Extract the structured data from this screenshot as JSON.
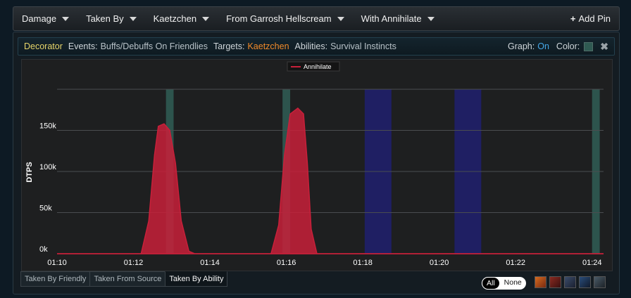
{
  "toolbar": {
    "items": [
      {
        "label": "Damage",
        "name": "damage-dropdown"
      },
      {
        "label": "Taken By",
        "name": "taken-by-dropdown"
      },
      {
        "label": "Kaetzchen",
        "name": "kaetzchen-dropdown"
      },
      {
        "label": "From Garrosh Hellscream",
        "name": "source-dropdown"
      },
      {
        "label": "With Annihilate",
        "name": "ability-dropdown"
      }
    ],
    "add_pin_label": "Add Pin",
    "add_pin_plus": "+"
  },
  "decorator": {
    "title": "Decorator",
    "events_label": "Events:",
    "events_value": "Buffs/Debuffs On Friendlies",
    "targets_label": "Targets:",
    "targets_value": "Kaetzchen",
    "abilities_label": "Abilities:",
    "abilities_value": "Survival Instincts",
    "graph_label": "Graph:",
    "graph_value": "On",
    "color_label": "Color:",
    "close_glyph": "✖"
  },
  "chart_data": {
    "type": "area",
    "title": "",
    "ylabel": "DTPS",
    "xlabel": "",
    "xlim_seconds": [
      70,
      84.3
    ],
    "ylim": [
      0,
      200000
    ],
    "x_ticks": [
      {
        "t": 70,
        "label": "01:10"
      },
      {
        "t": 72,
        "label": "01:12"
      },
      {
        "t": 74,
        "label": "01:14"
      },
      {
        "t": 76,
        "label": "01:16"
      },
      {
        "t": 78,
        "label": "01:18"
      },
      {
        "t": 80,
        "label": "01:20"
      },
      {
        "t": 82,
        "label": "01:22"
      },
      {
        "t": 84,
        "label": "01:24"
      }
    ],
    "y_ticks": [
      {
        "v": 0,
        "label": "0k"
      },
      {
        "v": 50000,
        "label": "50k"
      },
      {
        "v": 100000,
        "label": "100k"
      },
      {
        "v": 150000,
        "label": "150k"
      }
    ],
    "grid": true,
    "legend_position": "top-center",
    "series": [
      {
        "name": "Annihilate",
        "color": "#c8203a",
        "points": [
          [
            70,
            0
          ],
          [
            72.2,
            0
          ],
          [
            72.4,
            40000
          ],
          [
            72.55,
            120000
          ],
          [
            72.65,
            155000
          ],
          [
            72.8,
            158000
          ],
          [
            72.95,
            150000
          ],
          [
            73.1,
            110000
          ],
          [
            73.25,
            40000
          ],
          [
            73.45,
            3000
          ],
          [
            73.6,
            0
          ],
          [
            75.6,
            0
          ],
          [
            75.8,
            35000
          ],
          [
            75.95,
            120000
          ],
          [
            76.1,
            170000
          ],
          [
            76.3,
            177000
          ],
          [
            76.45,
            170000
          ],
          [
            76.55,
            110000
          ],
          [
            76.65,
            30000
          ],
          [
            76.8,
            0
          ],
          [
            84.3,
            0
          ]
        ]
      }
    ],
    "bands": [
      {
        "start": 72.85,
        "end": 73.05,
        "color": "#2f5a52"
      },
      {
        "start": 75.9,
        "end": 76.1,
        "color": "#2f5a52"
      },
      {
        "start": 78.05,
        "end": 78.75,
        "color": "#1f1f6a"
      },
      {
        "start": 80.4,
        "end": 81.1,
        "color": "#1f1f6a"
      },
      {
        "start": 84.0,
        "end": 84.2,
        "color": "#2f5a52"
      }
    ]
  },
  "tabs": [
    {
      "label": "Taken By Friendly",
      "active": false
    },
    {
      "label": "Taken From Source",
      "active": false
    },
    {
      "label": "Taken By Ability",
      "active": true
    }
  ],
  "filter": {
    "all_label": "All",
    "none_label": "None"
  },
  "unit_icons": [
    "unit-icon-1",
    "unit-icon-2",
    "unit-icon-3",
    "unit-icon-4",
    "unit-icon-5"
  ]
}
